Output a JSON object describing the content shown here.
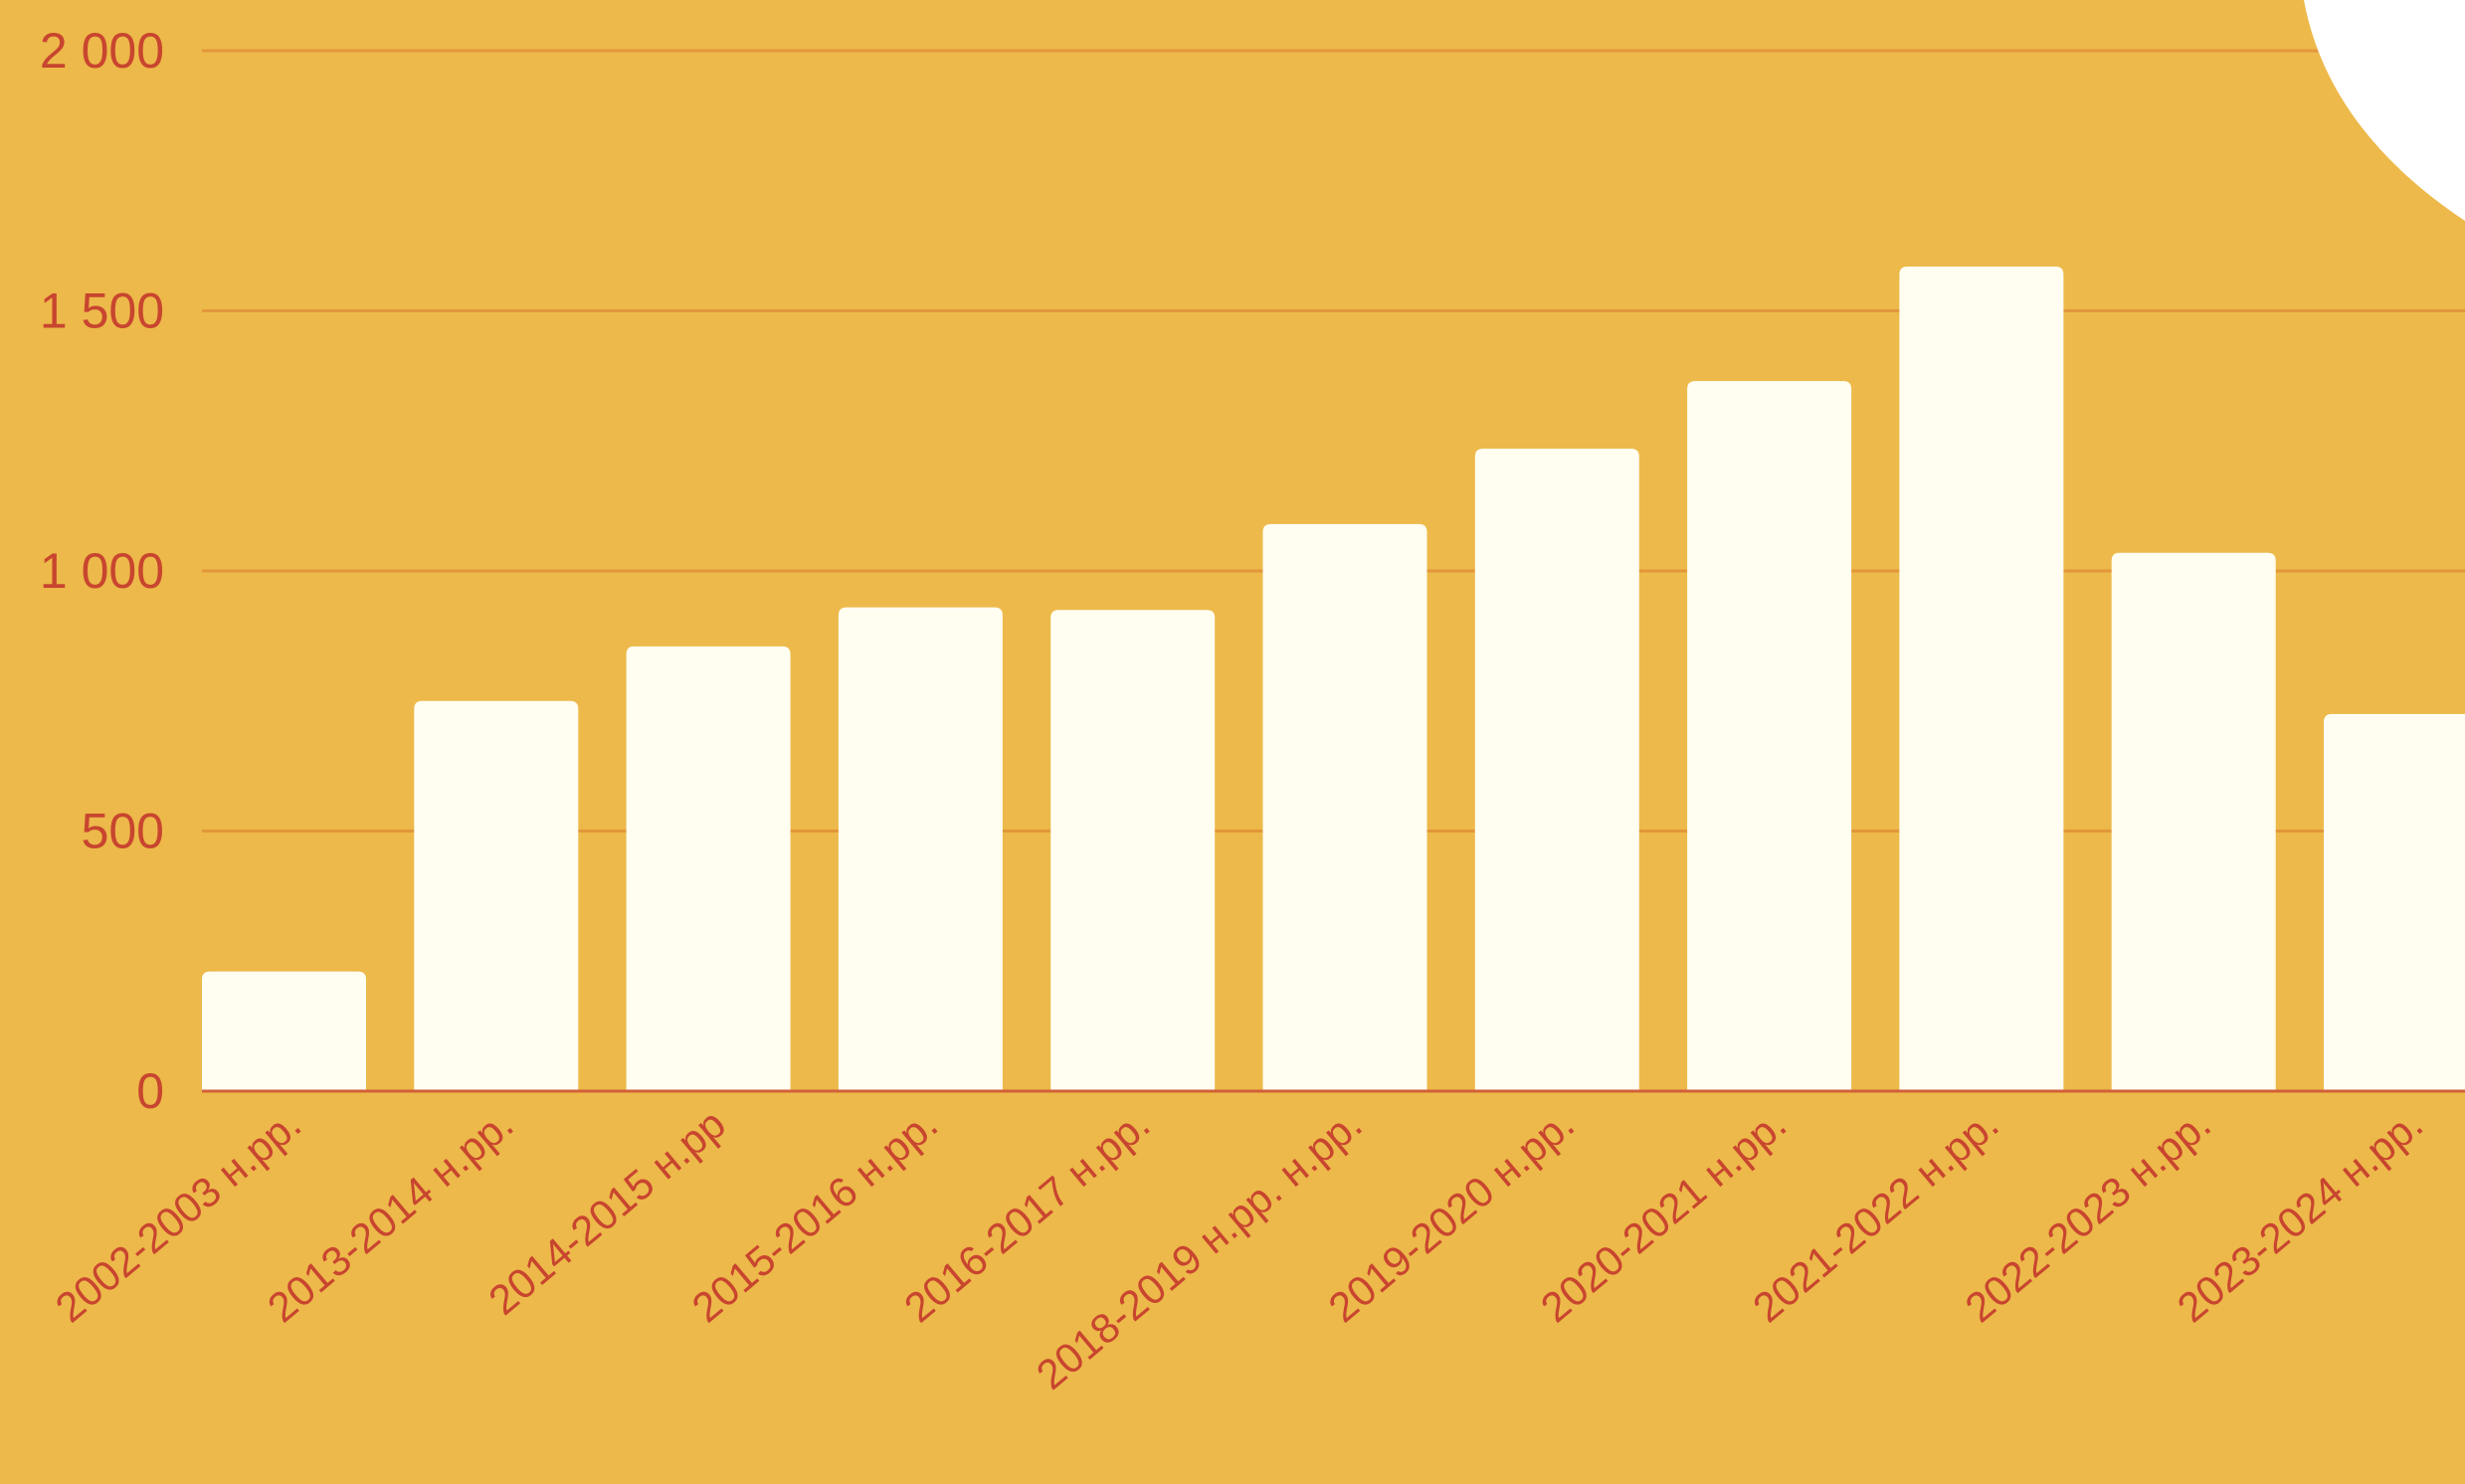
{
  "chart_data": {
    "type": "bar",
    "title": "",
    "xlabel": "",
    "ylabel": "",
    "categories": [
      "2002-2003 н.рр.",
      "2013-2014 н.рр.",
      "2014-2015 н.рр",
      "2015-2016 н.рр.",
      "2016-2017 н.рр.",
      "2018-2019 н.рр. н.рр.",
      "2019-2020 н.рр.",
      "2020-2021 н.рр.",
      "2021-2022 н.рр.",
      "2022-2023 н.рр.",
      "2023-2024 н.рр."
    ],
    "values": [
      230,
      750,
      855,
      930,
      925,
      1090,
      1235,
      1365,
      1585,
      1035,
      725
    ],
    "ylim": [
      0,
      2000
    ],
    "yticks": [
      {
        "value": 0,
        "label": "0"
      },
      {
        "value": 500,
        "label": "500"
      },
      {
        "value": 1000,
        "label": "1 000"
      },
      {
        "value": 1500,
        "label": "1 500"
      },
      {
        "value": 2000,
        "label": "2 000"
      }
    ],
    "grid": true,
    "colors": {
      "background": "#EDB94A",
      "bar": "#FFFEF1",
      "grid": "#E2973A",
      "baseline": "#D2603A",
      "text": "#C8452F",
      "corner_shape": "#FFFFFF"
    }
  }
}
